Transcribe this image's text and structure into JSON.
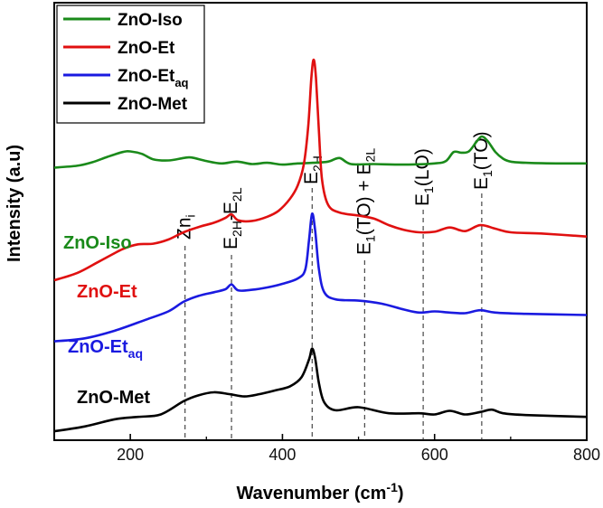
{
  "chart_data": {
    "type": "line",
    "title": "",
    "xlabel": "Wavenumber (cm",
    "xlabel_sup": "-1",
    "xlabel_end": ")",
    "ylabel": "Intensity (a.u)",
    "xlim": [
      100,
      800
    ],
    "ylim": [
      0,
      1
    ],
    "x_ticks": [
      "200",
      "400",
      "600",
      "800"
    ],
    "legend_position": "top-left",
    "peak_markers": [
      {
        "x": 272,
        "base": "Zn",
        "sub": "i",
        "rest": ""
      },
      {
        "x": 333,
        "base": "E",
        "sub": "2H",
        "rest": "-E",
        "sub2": "2L"
      },
      {
        "x": 439,
        "base": "E",
        "sub": "2H",
        "rest": ""
      },
      {
        "x": 508,
        "base": "E",
        "sub": "1",
        "rest": "(TO) + E",
        "sub2": "2L"
      },
      {
        "x": 585,
        "base": "E",
        "sub": "1",
        "rest": "(LO)"
      },
      {
        "x": 662,
        "base": "E",
        "sub": "1",
        "rest": "(TO)"
      }
    ],
    "series": [
      {
        "name": "ZnO-Iso",
        "label_base": "ZnO-Iso",
        "label_sub": "",
        "color": "#1a8a1a",
        "x": [
          100,
          130,
          150,
          170,
          190,
          200,
          215,
          230,
          250,
          270,
          280,
          300,
          320,
          340,
          360,
          380,
          400,
          420,
          440,
          460,
          475,
          490,
          520,
          560,
          600,
          615,
          625,
          635,
          645,
          655,
          662,
          670,
          680,
          690,
          700,
          720,
          760,
          800
        ],
        "y": [
          0.32,
          0.323,
          0.329,
          0.338,
          0.346,
          0.347,
          0.343,
          0.334,
          0.332,
          0.336,
          0.337,
          0.331,
          0.327,
          0.33,
          0.326,
          0.328,
          0.325,
          0.327,
          0.328,
          0.33,
          0.336,
          0.326,
          0.326,
          0.325,
          0.327,
          0.331,
          0.346,
          0.345,
          0.347,
          0.363,
          0.372,
          0.364,
          0.346,
          0.335,
          0.33,
          0.328,
          0.327,
          0.327
        ]
      },
      {
        "name": "ZnO-Et",
        "label_base": "ZnO-Et",
        "label_sub": "",
        "color": "#e01010",
        "x": [
          100,
          130,
          160,
          190,
          210,
          230,
          250,
          270,
          290,
          310,
          325,
          333,
          342,
          360,
          380,
          395,
          410,
          420,
          428,
          434,
          438,
          441,
          444,
          448,
          452,
          460,
          475,
          500,
          520,
          540,
          560,
          580,
          600,
          620,
          640,
          660,
          680,
          700,
          740,
          800
        ],
        "y": [
          0.132,
          0.144,
          0.164,
          0.184,
          0.192,
          0.193,
          0.2,
          0.212,
          0.221,
          0.228,
          0.236,
          0.242,
          0.232,
          0.231,
          0.238,
          0.248,
          0.268,
          0.29,
          0.325,
          0.39,
          0.47,
          0.5,
          0.47,
          0.38,
          0.3,
          0.258,
          0.245,
          0.24,
          0.235,
          0.224,
          0.216,
          0.212,
          0.213,
          0.22,
          0.214,
          0.224,
          0.218,
          0.212,
          0.21,
          0.205
        ]
      },
      {
        "name": "ZnO-Etaq",
        "label_base": "ZnO-Et",
        "label_sub": "aq",
        "color": "#1a1ae0",
        "x": [
          100,
          140,
          180,
          220,
          250,
          270,
          290,
          310,
          325,
          333,
          342,
          360,
          380,
          400,
          420,
          430,
          435,
          439,
          443,
          448,
          455,
          470,
          500,
          530,
          560,
          580,
          600,
          620,
          640,
          660,
          680,
          720,
          800
        ],
        "y": [
          0.03,
          0.035,
          0.048,
          0.066,
          0.08,
          0.096,
          0.106,
          0.112,
          0.117,
          0.125,
          0.115,
          0.116,
          0.12,
          0.126,
          0.135,
          0.15,
          0.2,
          0.243,
          0.215,
          0.15,
          0.112,
          0.1,
          0.098,
          0.093,
          0.083,
          0.078,
          0.08,
          0.078,
          0.077,
          0.082,
          0.078,
          0.076,
          0.074
        ]
      },
      {
        "name": "ZnO-Met",
        "label_base": "ZnO-Met",
        "label_sub": "",
        "color": "#000000",
        "x": [
          100,
          140,
          180,
          210,
          240,
          270,
          290,
          310,
          330,
          350,
          370,
          390,
          410,
          425,
          435,
          439,
          443,
          448,
          455,
          470,
          500,
          540,
          580,
          600,
          620,
          640,
          660,
          675,
          690,
          720,
          800
        ],
        "y": [
          -0.12,
          -0.112,
          -0.1,
          -0.096,
          -0.092,
          -0.07,
          -0.06,
          -0.055,
          -0.058,
          -0.062,
          -0.058,
          -0.052,
          -0.045,
          -0.03,
          0.0,
          0.018,
          0.002,
          -0.04,
          -0.072,
          -0.085,
          -0.08,
          -0.09,
          -0.09,
          -0.092,
          -0.086,
          -0.092,
          -0.088,
          -0.084,
          -0.09,
          -0.093,
          -0.096
        ]
      }
    ]
  }
}
